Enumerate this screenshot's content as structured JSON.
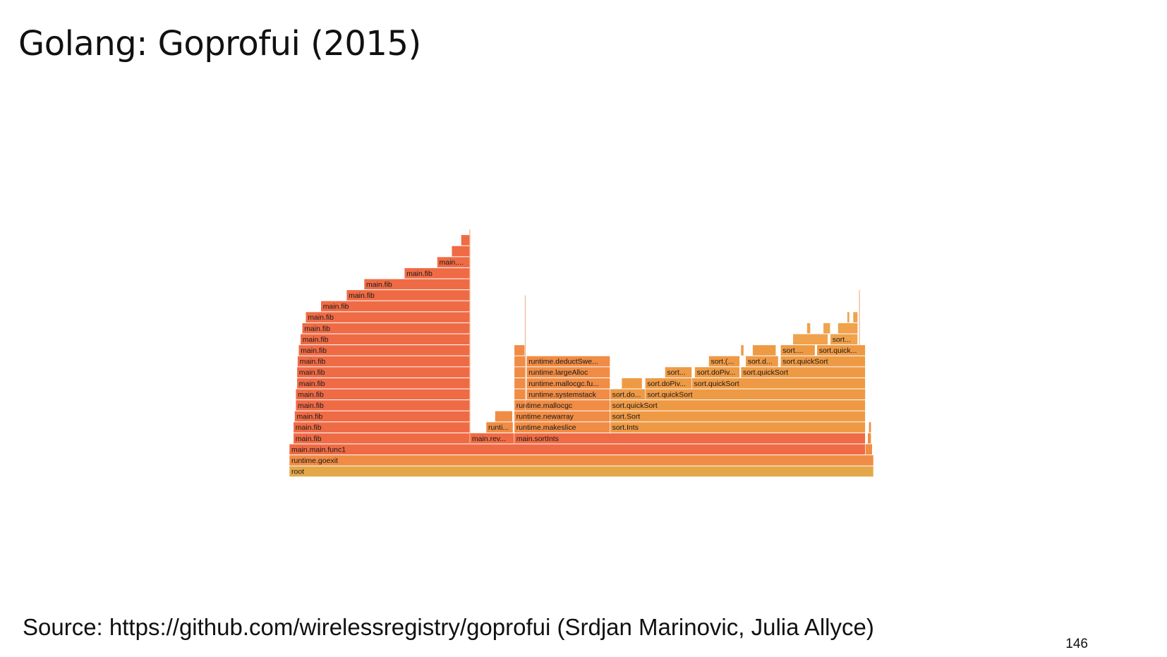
{
  "slide": {
    "title": "Golang: Goprofui (2015)",
    "source": "Source: https://github.com/wirelessregistry/goprofui (Srdjan Marinovic, Julia Allyce)",
    "page_number": "146"
  },
  "flamegraph": {
    "colors": {
      "root": "#e3a74a",
      "hot": "#ef6b45",
      "warm": "#f08c45",
      "mid": "#ee9a45",
      "light": "#f0a24c"
    },
    "frames": [
      {
        "d": 0,
        "s": 0,
        "w": 1.0,
        "label": "root",
        "color": "root"
      },
      {
        "d": 1,
        "s": 0,
        "w": 1.0,
        "label": "runtime.goexit",
        "color": "warm"
      },
      {
        "d": 2,
        "s": 0,
        "w": 0.986,
        "label": "main.main.func1",
        "color": "hot"
      },
      {
        "d": 3,
        "s": 0.007,
        "w": 0.302,
        "label": "main.fib",
        "color": "hot"
      },
      {
        "d": 4,
        "s": 0.007,
        "w": 0.302,
        "label": "main.fib",
        "color": "hot"
      },
      {
        "d": 5,
        "s": 0.009,
        "w": 0.3,
        "label": "main.fib",
        "color": "hot"
      },
      {
        "d": 6,
        "s": 0.011,
        "w": 0.298,
        "label": "main.fib",
        "color": "hot"
      },
      {
        "d": 7,
        "s": 0.011,
        "w": 0.298,
        "label": "main.fib",
        "color": "hot"
      },
      {
        "d": 8,
        "s": 0.013,
        "w": 0.296,
        "label": "main.fib",
        "color": "hot"
      },
      {
        "d": 9,
        "s": 0.013,
        "w": 0.296,
        "label": "main.fib",
        "color": "hot"
      },
      {
        "d": 10,
        "s": 0.014,
        "w": 0.295,
        "label": "main.fib",
        "color": "hot"
      },
      {
        "d": 11,
        "s": 0.016,
        "w": 0.293,
        "label": "main.fib",
        "color": "hot"
      },
      {
        "d": 12,
        "s": 0.019,
        "w": 0.29,
        "label": "main.fib",
        "color": "hot"
      },
      {
        "d": 13,
        "s": 0.022,
        "w": 0.287,
        "label": "main.fib",
        "color": "hot"
      },
      {
        "d": 14,
        "s": 0.028,
        "w": 0.281,
        "label": "main.fib",
        "color": "hot"
      },
      {
        "d": 15,
        "s": 0.054,
        "w": 0.255,
        "label": "main.fib",
        "color": "hot"
      },
      {
        "d": 16,
        "s": 0.098,
        "w": 0.211,
        "label": "main.fib",
        "color": "hot"
      },
      {
        "d": 17,
        "s": 0.128,
        "w": 0.181,
        "label": "main.fib",
        "color": "hot"
      },
      {
        "d": 18,
        "s": 0.197,
        "w": 0.112,
        "label": "main.fib",
        "color": "hot"
      },
      {
        "d": 19,
        "s": 0.253,
        "w": 0.056,
        "label": "main....",
        "color": "hot"
      },
      {
        "d": 20,
        "s": 0.278,
        "w": 0.031,
        "label": "",
        "color": "hot"
      },
      {
        "d": 21,
        "s": 0.294,
        "w": 0.015,
        "label": "",
        "color": "hot"
      },
      {
        "d": 3,
        "s": 0.309,
        "w": 0.076,
        "label": "main.rev...",
        "color": "hot"
      },
      {
        "d": 4,
        "s": 0.337,
        "w": 0.046,
        "label": "runti...",
        "color": "warm"
      },
      {
        "d": 5,
        "s": 0.352,
        "w": 0.03,
        "label": "",
        "color": "warm"
      },
      {
        "d": 3,
        "s": 0.385,
        "w": 0.601,
        "label": "main.sortInts",
        "color": "hot"
      },
      {
        "d": 4,
        "s": 0.385,
        "w": 0.164,
        "label": "runtime.makeslice",
        "color": "warm"
      },
      {
        "d": 5,
        "s": 0.385,
        "w": 0.164,
        "label": "runtime.newarray",
        "color": "warm"
      },
      {
        "d": 6,
        "s": 0.385,
        "w": 0.164,
        "label": "runtime.mallocgc",
        "color": "warm"
      },
      {
        "d": 7,
        "s": 0.385,
        "w": 0.02,
        "label": "",
        "color": "warm"
      },
      {
        "d": 7,
        "s": 0.406,
        "w": 0.143,
        "label": "runtime.systemstack",
        "color": "warm"
      },
      {
        "d": 8,
        "s": 0.385,
        "w": 0.02,
        "label": "",
        "color": "warm"
      },
      {
        "d": 8,
        "s": 0.406,
        "w": 0.143,
        "label": "runtime.mallocgc.fu...",
        "color": "warm"
      },
      {
        "d": 9,
        "s": 0.385,
        "w": 0.02,
        "label": "",
        "color": "warm"
      },
      {
        "d": 9,
        "s": 0.406,
        "w": 0.143,
        "label": "runtime.largeAlloc",
        "color": "warm"
      },
      {
        "d": 10,
        "s": 0.385,
        "w": 0.02,
        "label": "",
        "color": "warm"
      },
      {
        "d": 10,
        "s": 0.406,
        "w": 0.143,
        "label": "runtime.deductSwe...",
        "color": "warm"
      },
      {
        "d": 11,
        "s": 0.385,
        "w": 0.018,
        "label": "",
        "color": "warm"
      },
      {
        "d": 4,
        "s": 0.549,
        "w": 0.437,
        "label": "sort.Ints",
        "color": "mid"
      },
      {
        "d": 5,
        "s": 0.549,
        "w": 0.437,
        "label": "sort.Sort",
        "color": "mid"
      },
      {
        "d": 6,
        "s": 0.549,
        "w": 0.437,
        "label": "sort.quickSort",
        "color": "mid"
      },
      {
        "d": 7,
        "s": 0.549,
        "w": 0.06,
        "label": "sort.do...",
        "color": "mid"
      },
      {
        "d": 7,
        "s": 0.609,
        "w": 0.377,
        "label": "sort.quickSort",
        "color": "mid"
      },
      {
        "d": 8,
        "s": 0.569,
        "w": 0.035,
        "label": "",
        "color": "mid"
      },
      {
        "d": 8,
        "s": 0.609,
        "w": 0.08,
        "label": "sort.doPiv...",
        "color": "mid"
      },
      {
        "d": 8,
        "s": 0.689,
        "w": 0.297,
        "label": "sort.quickSort",
        "color": "mid"
      },
      {
        "d": 9,
        "s": 0.643,
        "w": 0.046,
        "label": "sort...",
        "color": "mid"
      },
      {
        "d": 9,
        "s": 0.694,
        "w": 0.077,
        "label": "sort.doPiv...",
        "color": "mid"
      },
      {
        "d": 9,
        "s": 0.773,
        "w": 0.213,
        "label": "sort.quickSort",
        "color": "mid"
      },
      {
        "d": 10,
        "s": 0.718,
        "w": 0.053,
        "label": "sort.(...",
        "color": "mid"
      },
      {
        "d": 10,
        "s": 0.781,
        "w": 0.056,
        "label": "sort.d...",
        "color": "mid"
      },
      {
        "d": 10,
        "s": 0.841,
        "w": 0.145,
        "label": "sort.quickSort",
        "color": "mid"
      },
      {
        "d": 11,
        "s": 0.773,
        "w": 0.005,
        "label": "",
        "color": "mid"
      },
      {
        "d": 11,
        "s": 0.793,
        "w": 0.04,
        "label": "",
        "color": "mid"
      },
      {
        "d": 11,
        "s": 0.841,
        "w": 0.059,
        "label": "sort....",
        "color": "mid"
      },
      {
        "d": 11,
        "s": 0.903,
        "w": 0.083,
        "label": "sort.quick...",
        "color": "mid"
      },
      {
        "d": 12,
        "s": 0.862,
        "w": 0.06,
        "label": "",
        "color": "light"
      },
      {
        "d": 12,
        "s": 0.926,
        "w": 0.047,
        "label": "sort...",
        "color": "light"
      },
      {
        "d": 13,
        "s": 0.886,
        "w": 0.006,
        "label": "",
        "color": "light"
      },
      {
        "d": 13,
        "s": 0.914,
        "w": 0.012,
        "label": "",
        "color": "light"
      },
      {
        "d": 13,
        "s": 0.939,
        "w": 0.034,
        "label": "",
        "color": "light"
      },
      {
        "d": 14,
        "s": 0.965,
        "w": 0.008,
        "label": "",
        "color": "light"
      },
      {
        "d": 14,
        "s": 0.955,
        "w": 0.004,
        "label": "",
        "color": "light"
      },
      {
        "d": 2,
        "s": 0.986,
        "w": 0.012,
        "label": "",
        "color": "warm"
      },
      {
        "d": 3,
        "s": 0.99,
        "w": 0.006,
        "label": "",
        "color": "warm"
      },
      {
        "d": 4,
        "s": 0.992,
        "w": 0.004,
        "label": "",
        "color": "warm"
      }
    ]
  }
}
